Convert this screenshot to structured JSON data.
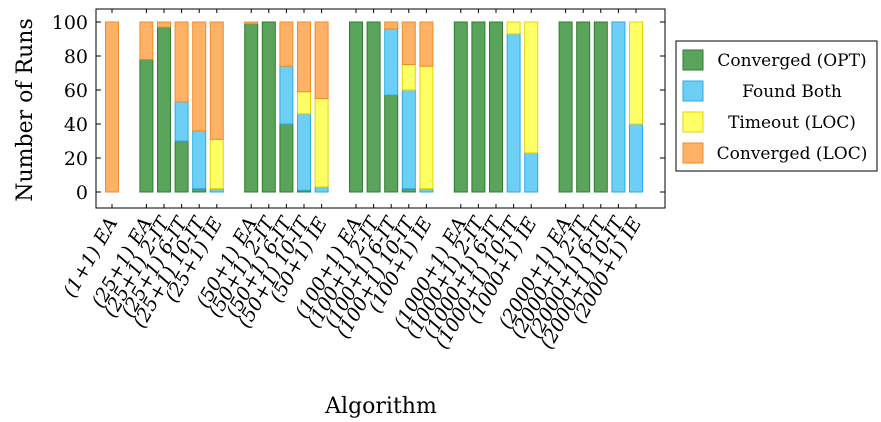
{
  "chart_data": {
    "type": "bar",
    "stacked": true,
    "xlabel": "Algorithm",
    "ylabel": "Number of Runs",
    "ylim": [
      0,
      100
    ],
    "yticks": [
      0,
      20,
      40,
      60,
      80,
      100
    ],
    "legend_placement": "right",
    "categories": [
      "(1+1) EA",
      "(25+1) EA",
      "(25+1) 2-IT",
      "(25+1) 6-IT",
      "(25+1) 10-IT",
      "(25+1) IE",
      "(50+1) EA",
      "(50+1) 2-IT",
      "(50+1) 6-IT",
      "(50+1) 10-IT",
      "(50+1) IE",
      "(100+1) EA",
      "(100+1) 2-IT",
      "(100+1) 6-IT",
      "(100+1) 10-IT",
      "(100+1) IE",
      "(1000+1) EA",
      "(1000+1) 2-IT",
      "(1000+1) 6-IT",
      "(1000+1) 10-IT",
      "(1000+1) IE",
      "(2000+1) EA",
      "(2000+1) 2-IT",
      "(2000+1) 6-IT",
      "(2000+1) 10-IT",
      "(2000+1) IE"
    ],
    "series": [
      {
        "name": "Converged (OPT)",
        "color": "#5aa35a",
        "edge": "#2e7d2e",
        "values": [
          0,
          78,
          97,
          30,
          2,
          0,
          99,
          100,
          40,
          1,
          0,
          100,
          100,
          57,
          2,
          0,
          100,
          100,
          100,
          0,
          0,
          100,
          100,
          100,
          0,
          0
        ]
      },
      {
        "name": "Found Both",
        "color": "#6ecff6",
        "edge": "#29abe2",
        "values": [
          0,
          0,
          0,
          23,
          34,
          2,
          0,
          0,
          34,
          45,
          3,
          0,
          0,
          39,
          58,
          2,
          0,
          0,
          0,
          93,
          23,
          0,
          0,
          0,
          100,
          40
        ]
      },
      {
        "name": "Timeout (LOC)",
        "color": "#ffff66",
        "edge": "#e6d600",
        "values": [
          0,
          0,
          0,
          0,
          0,
          29,
          0,
          0,
          0,
          13,
          52,
          0,
          0,
          0,
          15,
          72,
          0,
          0,
          0,
          7,
          77,
          0,
          0,
          0,
          0,
          60
        ]
      },
      {
        "name": "Converged (LOC)",
        "color": "#ffb266",
        "edge": "#f28c28",
        "values": [
          100,
          22,
          3,
          47,
          64,
          69,
          1,
          0,
          26,
          41,
          45,
          0,
          0,
          4,
          25,
          26,
          0,
          0,
          0,
          0,
          0,
          0,
          0,
          0,
          0,
          0
        ]
      }
    ]
  }
}
